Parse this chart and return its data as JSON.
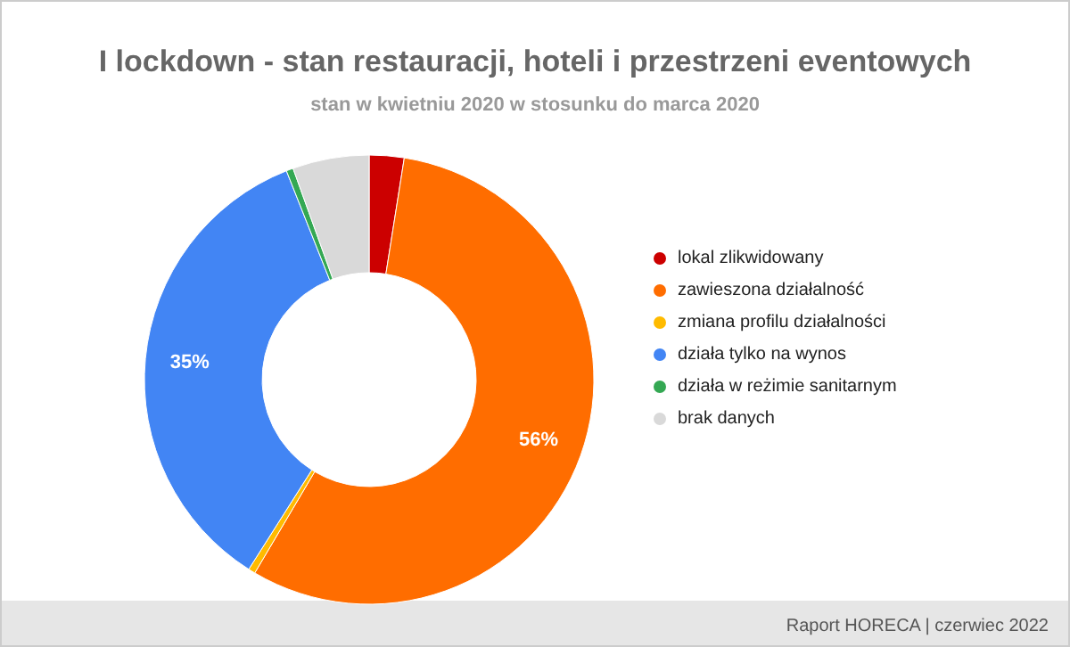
{
  "chart_data": {
    "type": "donut",
    "title": "I lockdown - stan restauracji, hoteli i przestrzeni eventowych",
    "subtitle": "stan w kwietniu 2020 w stosunku do marca 2020",
    "categories": [
      "lokal zlikwidowany",
      "zawieszona działalność",
      "zmiana profilu działalności",
      "działa tylko na wynos",
      "działa w reżimie sanitarnym",
      "brak danych"
    ],
    "values": [
      2.5,
      56,
      0.5,
      35,
      0.5,
      5.5
    ],
    "colors": [
      "#cc0000",
      "#ff6d00",
      "#ffbb00",
      "#4285f4",
      "#34a853",
      "#d9d9d9"
    ],
    "value_labels": [
      null,
      "56%",
      null,
      "35%",
      null,
      null
    ],
    "legend": "right",
    "annotations": [
      "Raport HORECA | czerwiec 2022"
    ]
  }
}
